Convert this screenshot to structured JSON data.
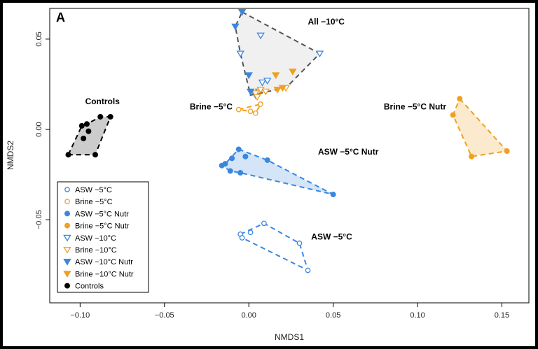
{
  "chart_data": {
    "type": "scatter",
    "panel_label": "A",
    "xlabel": "NMDS1",
    "ylabel": "NMDS2",
    "xlim": [
      -0.118,
      0.166
    ],
    "ylim": [
      -0.096,
      0.067
    ],
    "xticks": [
      -0.1,
      -0.05,
      0.0,
      0.05,
      0.1,
      0.15
    ],
    "xtick_labels": [
      "−0.10",
      "−0.05",
      "0.00",
      "0.05",
      "0.10",
      "0.15"
    ],
    "yticks": [
      -0.05,
      0.0,
      0.05
    ],
    "ytick_labels": [
      "−0.05",
      "0.00",
      "0.05"
    ],
    "colors": {
      "blue": "#3a87e0",
      "orange": "#f0a020",
      "black": "#000000"
    },
    "legend_position": "bottom-left",
    "series": [
      {
        "name": "ASW −5°C",
        "marker": "circle-open",
        "color": "#3a87e0",
        "points": [
          [
            -0.005,
            -0.058
          ],
          [
            -0.004,
            -0.06
          ],
          [
            0.001,
            -0.057
          ],
          [
            0.009,
            -0.052
          ],
          [
            0.03,
            -0.063
          ],
          [
            0.035,
            -0.078
          ]
        ]
      },
      {
        "name": "Brine −5°C",
        "marker": "circle-open",
        "color": "#f0a020",
        "points": [
          [
            -0.006,
            0.011
          ],
          [
            0.001,
            0.01
          ],
          [
            0.004,
            0.009
          ],
          [
            0.007,
            0.014
          ]
        ]
      },
      {
        "name": "ASW −5°C Nutr",
        "marker": "circle-filled",
        "color": "#3a87e0",
        "points": [
          [
            -0.016,
            -0.02
          ],
          [
            -0.014,
            -0.019
          ],
          [
            -0.011,
            -0.023
          ],
          [
            -0.01,
            -0.016
          ],
          [
            -0.006,
            -0.011
          ],
          [
            -0.005,
            -0.024
          ],
          [
            -0.002,
            -0.015
          ],
          [
            0.011,
            -0.017
          ],
          [
            0.05,
            -0.036
          ]
        ]
      },
      {
        "name": "Brine −5°C Nutr",
        "marker": "circle-filled",
        "color": "#f0a020",
        "points": [
          [
            0.121,
            0.008
          ],
          [
            0.125,
            0.017
          ],
          [
            0.132,
            -0.015
          ],
          [
            0.153,
            -0.012
          ]
        ]
      },
      {
        "name": "ASW −10°C",
        "marker": "triangle-down-open",
        "color": "#3a87e0",
        "points": [
          [
            -0.005,
            0.042
          ],
          [
            0.007,
            0.052
          ],
          [
            0.042,
            0.042
          ],
          [
            0.008,
            0.026
          ],
          [
            0.011,
            0.027
          ],
          [
            0.004,
            0.019
          ],
          [
            0.006,
            0.021
          ]
        ]
      },
      {
        "name": "Brine −10°C",
        "marker": "triangle-down-open",
        "color": "#f0a020",
        "points": [
          [
            0.004,
            0.02
          ],
          [
            0.007,
            0.022
          ],
          [
            0.01,
            0.021
          ],
          [
            0.022,
            0.023
          ],
          [
            0.005,
            0.018
          ]
        ]
      },
      {
        "name": "ASW −10°C Nutr",
        "marker": "triangle-down-filled",
        "color": "#3a87e0",
        "points": [
          [
            -0.004,
            0.065
          ],
          [
            -0.008,
            0.057
          ],
          [
            0.0,
            0.03
          ],
          [
            0.001,
            0.021
          ]
        ]
      },
      {
        "name": "Brine −10°C Nutr",
        "marker": "triangle-down-filled",
        "color": "#f0a020",
        "points": [
          [
            0.016,
            0.03
          ],
          [
            0.026,
            0.032
          ],
          [
            0.017,
            0.022
          ],
          [
            0.02,
            0.023
          ]
        ]
      },
      {
        "name": "Controls",
        "marker": "circle-filled",
        "color": "#000000",
        "points": [
          [
            -0.107,
            -0.014
          ],
          [
            -0.099,
            0.002
          ],
          [
            -0.096,
            0.003
          ],
          [
            -0.095,
            -0.001
          ],
          [
            -0.098,
            -0.005
          ],
          [
            -0.091,
            -0.014
          ],
          [
            -0.088,
            0.007
          ],
          [
            -0.082,
            0.007
          ]
        ]
      }
    ],
    "hulls": [
      {
        "label": "Controls",
        "color": "#000000",
        "fill": "#aaaaaa",
        "fill_opacity": 0.6,
        "points": [
          [
            -0.107,
            -0.014
          ],
          [
            -0.099,
            0.002
          ],
          [
            -0.096,
            0.003
          ],
          [
            -0.088,
            0.007
          ],
          [
            -0.082,
            0.007
          ],
          [
            -0.091,
            -0.014
          ]
        ]
      },
      {
        "label": "All −10°C",
        "color": "#555555",
        "fill": "#dddddd",
        "fill_opacity": 0.45,
        "points": [
          [
            -0.004,
            0.065
          ],
          [
            0.042,
            0.042
          ],
          [
            0.022,
            0.023
          ],
          [
            0.001,
            0.019
          ],
          [
            -0.005,
            0.042
          ],
          [
            -0.008,
            0.057
          ]
        ]
      },
      {
        "label": "Brine −5°C",
        "color": "#f0a020",
        "fill": "none",
        "fill_opacity": 0,
        "points": [
          [
            -0.006,
            0.011
          ],
          [
            0.007,
            0.014
          ],
          [
            0.004,
            0.009
          ],
          [
            0.001,
            0.01
          ]
        ]
      },
      {
        "label": "ASW −5°C Nutr",
        "color": "#3a87e0",
        "fill": "#3a87e0",
        "fill_opacity": 0.22,
        "points": [
          [
            -0.006,
            -0.011
          ],
          [
            0.011,
            -0.017
          ],
          [
            0.05,
            -0.036
          ],
          [
            -0.005,
            -0.024
          ],
          [
            -0.011,
            -0.023
          ],
          [
            -0.016,
            -0.02
          ],
          [
            -0.014,
            -0.019
          ]
        ]
      },
      {
        "label": "Brine −5°C Nutr",
        "color": "#f0a020",
        "fill": "#f0a020",
        "fill_opacity": 0.22,
        "points": [
          [
            0.125,
            0.017
          ],
          [
            0.153,
            -0.012
          ],
          [
            0.132,
            -0.015
          ],
          [
            0.121,
            0.008
          ]
        ]
      },
      {
        "label": "ASW −5°C",
        "color": "#3a87e0",
        "fill": "none",
        "fill_opacity": 0,
        "points": [
          [
            -0.005,
            -0.058
          ],
          [
            0.009,
            -0.052
          ],
          [
            0.03,
            -0.063
          ],
          [
            0.035,
            -0.078
          ],
          [
            -0.004,
            -0.06
          ]
        ]
      }
    ],
    "group_labels": [
      {
        "text": "Controls",
        "x": -0.097,
        "y": 0.014
      },
      {
        "text": "All −10°C",
        "x": 0.035,
        "y": 0.058
      },
      {
        "text": "Brine −5°C",
        "x": -0.035,
        "y": 0.011
      },
      {
        "text": "ASW −5°C Nutr",
        "x": 0.041,
        "y": -0.014
      },
      {
        "text": "Brine −5°C Nutr",
        "x": 0.08,
        "y": 0.011
      },
      {
        "text": "ASW −5°C",
        "x": 0.037,
        "y": -0.061
      }
    ]
  }
}
